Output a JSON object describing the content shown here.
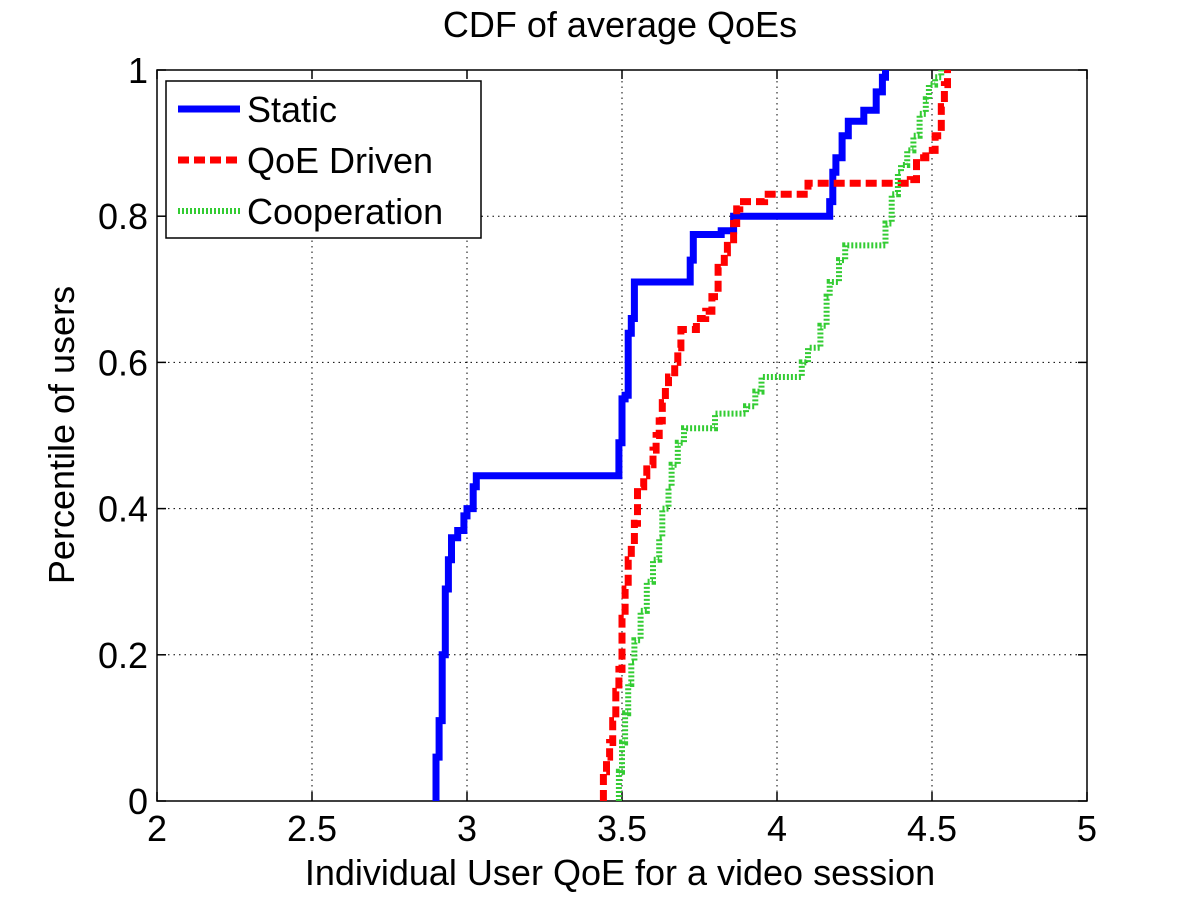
{
  "chart_data": {
    "type": "line",
    "title": "CDF of average QoEs",
    "xlabel": "Individual User QoE for a video session",
    "ylabel": "Percentile of users",
    "xlim": [
      2,
      5
    ],
    "ylim": [
      0,
      1
    ],
    "xticks": [
      2,
      2.5,
      3,
      3.5,
      4,
      4.5,
      5
    ],
    "xtick_labels": [
      "2",
      "2.5",
      "3",
      "3.5",
      "4",
      "4.5",
      "5"
    ],
    "yticks": [
      0,
      0.2,
      0.4,
      0.6,
      0.8,
      1
    ],
    "ytick_labels": [
      "0",
      "0.2",
      "0.4",
      "0.6",
      "0.8",
      "1"
    ],
    "grid": true,
    "legend_position": "top-left",
    "series": [
      {
        "name": "Static",
        "color": "#0000ff",
        "style": "solid",
        "points": [
          [
            2.9,
            0.0
          ],
          [
            2.9,
            0.06
          ],
          [
            2.91,
            0.06
          ],
          [
            2.91,
            0.11
          ],
          [
            2.92,
            0.11
          ],
          [
            2.92,
            0.2
          ],
          [
            2.93,
            0.2
          ],
          [
            2.93,
            0.29
          ],
          [
            2.94,
            0.29
          ],
          [
            2.94,
            0.33
          ],
          [
            2.95,
            0.33
          ],
          [
            2.95,
            0.36
          ],
          [
            2.97,
            0.36
          ],
          [
            2.97,
            0.37
          ],
          [
            2.99,
            0.37
          ],
          [
            2.99,
            0.39
          ],
          [
            3.0,
            0.39
          ],
          [
            3.0,
            0.4
          ],
          [
            3.02,
            0.4
          ],
          [
            3.02,
            0.43
          ],
          [
            3.03,
            0.43
          ],
          [
            3.03,
            0.445
          ],
          [
            3.49,
            0.445
          ],
          [
            3.49,
            0.49
          ],
          [
            3.5,
            0.49
          ],
          [
            3.5,
            0.55
          ],
          [
            3.51,
            0.55
          ],
          [
            3.51,
            0.555
          ],
          [
            3.52,
            0.555
          ],
          [
            3.52,
            0.64
          ],
          [
            3.53,
            0.64
          ],
          [
            3.53,
            0.66
          ],
          [
            3.54,
            0.66
          ],
          [
            3.54,
            0.71
          ],
          [
            3.72,
            0.71
          ],
          [
            3.72,
            0.74
          ],
          [
            3.73,
            0.74
          ],
          [
            3.73,
            0.775
          ],
          [
            3.82,
            0.775
          ],
          [
            3.82,
            0.78
          ],
          [
            3.86,
            0.78
          ],
          [
            3.86,
            0.8
          ],
          [
            4.17,
            0.8
          ],
          [
            4.17,
            0.82
          ],
          [
            4.18,
            0.82
          ],
          [
            4.18,
            0.86
          ],
          [
            4.19,
            0.86
          ],
          [
            4.19,
            0.88
          ],
          [
            4.21,
            0.88
          ],
          [
            4.21,
            0.91
          ],
          [
            4.23,
            0.91
          ],
          [
            4.23,
            0.93
          ],
          [
            4.28,
            0.93
          ],
          [
            4.28,
            0.945
          ],
          [
            4.32,
            0.945
          ],
          [
            4.32,
            0.97
          ],
          [
            4.34,
            0.97
          ],
          [
            4.34,
            0.99
          ],
          [
            4.35,
            0.99
          ],
          [
            4.35,
            1.0
          ]
        ]
      },
      {
        "name": "QoE Driven",
        "color": "#ff0000",
        "style": "dashed",
        "points": [
          [
            3.44,
            0.0
          ],
          [
            3.44,
            0.04
          ],
          [
            3.45,
            0.04
          ],
          [
            3.45,
            0.06
          ],
          [
            3.46,
            0.06
          ],
          [
            3.46,
            0.08
          ],
          [
            3.47,
            0.08
          ],
          [
            3.47,
            0.11
          ],
          [
            3.48,
            0.11
          ],
          [
            3.48,
            0.15
          ],
          [
            3.49,
            0.15
          ],
          [
            3.49,
            0.18
          ],
          [
            3.5,
            0.18
          ],
          [
            3.5,
            0.25
          ],
          [
            3.51,
            0.25
          ],
          [
            3.51,
            0.29
          ],
          [
            3.52,
            0.29
          ],
          [
            3.52,
            0.33
          ],
          [
            3.53,
            0.33
          ],
          [
            3.53,
            0.35
          ],
          [
            3.54,
            0.35
          ],
          [
            3.54,
            0.38
          ],
          [
            3.55,
            0.38
          ],
          [
            3.55,
            0.43
          ],
          [
            3.57,
            0.43
          ],
          [
            3.57,
            0.445
          ],
          [
            3.58,
            0.445
          ],
          [
            3.58,
            0.46
          ],
          [
            3.6,
            0.46
          ],
          [
            3.6,
            0.48
          ],
          [
            3.61,
            0.48
          ],
          [
            3.61,
            0.5
          ],
          [
            3.62,
            0.5
          ],
          [
            3.62,
            0.52
          ],
          [
            3.63,
            0.52
          ],
          [
            3.63,
            0.545
          ],
          [
            3.64,
            0.545
          ],
          [
            3.64,
            0.565
          ],
          [
            3.65,
            0.565
          ],
          [
            3.65,
            0.58
          ],
          [
            3.67,
            0.58
          ],
          [
            3.67,
            0.6
          ],
          [
            3.68,
            0.6
          ],
          [
            3.68,
            0.62
          ],
          [
            3.69,
            0.62
          ],
          [
            3.69,
            0.645
          ],
          [
            3.74,
            0.645
          ],
          [
            3.74,
            0.66
          ],
          [
            3.77,
            0.66
          ],
          [
            3.77,
            0.67
          ],
          [
            3.79,
            0.67
          ],
          [
            3.79,
            0.69
          ],
          [
            3.81,
            0.69
          ],
          [
            3.81,
            0.73
          ],
          [
            3.83,
            0.73
          ],
          [
            3.83,
            0.75
          ],
          [
            3.84,
            0.75
          ],
          [
            3.84,
            0.76
          ],
          [
            3.86,
            0.76
          ],
          [
            3.86,
            0.79
          ],
          [
            3.87,
            0.79
          ],
          [
            3.87,
            0.81
          ],
          [
            3.88,
            0.81
          ],
          [
            3.88,
            0.82
          ],
          [
            3.96,
            0.82
          ],
          [
            3.96,
            0.83
          ],
          [
            4.1,
            0.83
          ],
          [
            4.1,
            0.845
          ],
          [
            4.43,
            0.845
          ],
          [
            4.43,
            0.85
          ],
          [
            4.45,
            0.85
          ],
          [
            4.45,
            0.88
          ],
          [
            4.48,
            0.88
          ],
          [
            4.48,
            0.89
          ],
          [
            4.51,
            0.89
          ],
          [
            4.51,
            0.91
          ],
          [
            4.53,
            0.91
          ],
          [
            4.53,
            0.95
          ],
          [
            4.54,
            0.95
          ],
          [
            4.54,
            0.98
          ],
          [
            4.55,
            0.98
          ],
          [
            4.55,
            1.0
          ]
        ]
      },
      {
        "name": "Cooperation",
        "color": "#33cc33",
        "style": "dotted",
        "points": [
          [
            3.49,
            0.0
          ],
          [
            3.49,
            0.04
          ],
          [
            3.5,
            0.04
          ],
          [
            3.5,
            0.08
          ],
          [
            3.51,
            0.08
          ],
          [
            3.51,
            0.12
          ],
          [
            3.52,
            0.12
          ],
          [
            3.52,
            0.16
          ],
          [
            3.53,
            0.16
          ],
          [
            3.53,
            0.19
          ],
          [
            3.54,
            0.19
          ],
          [
            3.54,
            0.22
          ],
          [
            3.56,
            0.22
          ],
          [
            3.56,
            0.26
          ],
          [
            3.58,
            0.26
          ],
          [
            3.58,
            0.3
          ],
          [
            3.6,
            0.3
          ],
          [
            3.6,
            0.33
          ],
          [
            3.62,
            0.33
          ],
          [
            3.62,
            0.36
          ],
          [
            3.63,
            0.36
          ],
          [
            3.63,
            0.4
          ],
          [
            3.65,
            0.4
          ],
          [
            3.65,
            0.43
          ],
          [
            3.66,
            0.43
          ],
          [
            3.66,
            0.46
          ],
          [
            3.68,
            0.46
          ],
          [
            3.68,
            0.49
          ],
          [
            3.7,
            0.49
          ],
          [
            3.7,
            0.51
          ],
          [
            3.8,
            0.51
          ],
          [
            3.8,
            0.53
          ],
          [
            3.9,
            0.53
          ],
          [
            3.9,
            0.54
          ],
          [
            3.93,
            0.54
          ],
          [
            3.93,
            0.56
          ],
          [
            3.95,
            0.56
          ],
          [
            3.95,
            0.58
          ],
          [
            4.08,
            0.58
          ],
          [
            4.08,
            0.6
          ],
          [
            4.1,
            0.6
          ],
          [
            4.1,
            0.62
          ],
          [
            4.14,
            0.62
          ],
          [
            4.14,
            0.65
          ],
          [
            4.16,
            0.65
          ],
          [
            4.16,
            0.69
          ],
          [
            4.17,
            0.69
          ],
          [
            4.17,
            0.71
          ],
          [
            4.2,
            0.71
          ],
          [
            4.2,
            0.74
          ],
          [
            4.22,
            0.74
          ],
          [
            4.22,
            0.76
          ],
          [
            4.35,
            0.76
          ],
          [
            4.35,
            0.79
          ],
          [
            4.37,
            0.79
          ],
          [
            4.37,
            0.83
          ],
          [
            4.39,
            0.83
          ],
          [
            4.39,
            0.86
          ],
          [
            4.4,
            0.86
          ],
          [
            4.4,
            0.87
          ],
          [
            4.42,
            0.87
          ],
          [
            4.42,
            0.89
          ],
          [
            4.44,
            0.89
          ],
          [
            4.44,
            0.91
          ],
          [
            4.46,
            0.91
          ],
          [
            4.46,
            0.94
          ],
          [
            4.48,
            0.94
          ],
          [
            4.48,
            0.96
          ],
          [
            4.49,
            0.96
          ],
          [
            4.49,
            0.98
          ],
          [
            4.51,
            0.98
          ],
          [
            4.51,
            0.99
          ],
          [
            4.53,
            0.99
          ],
          [
            4.53,
            1.0
          ]
        ]
      }
    ]
  }
}
